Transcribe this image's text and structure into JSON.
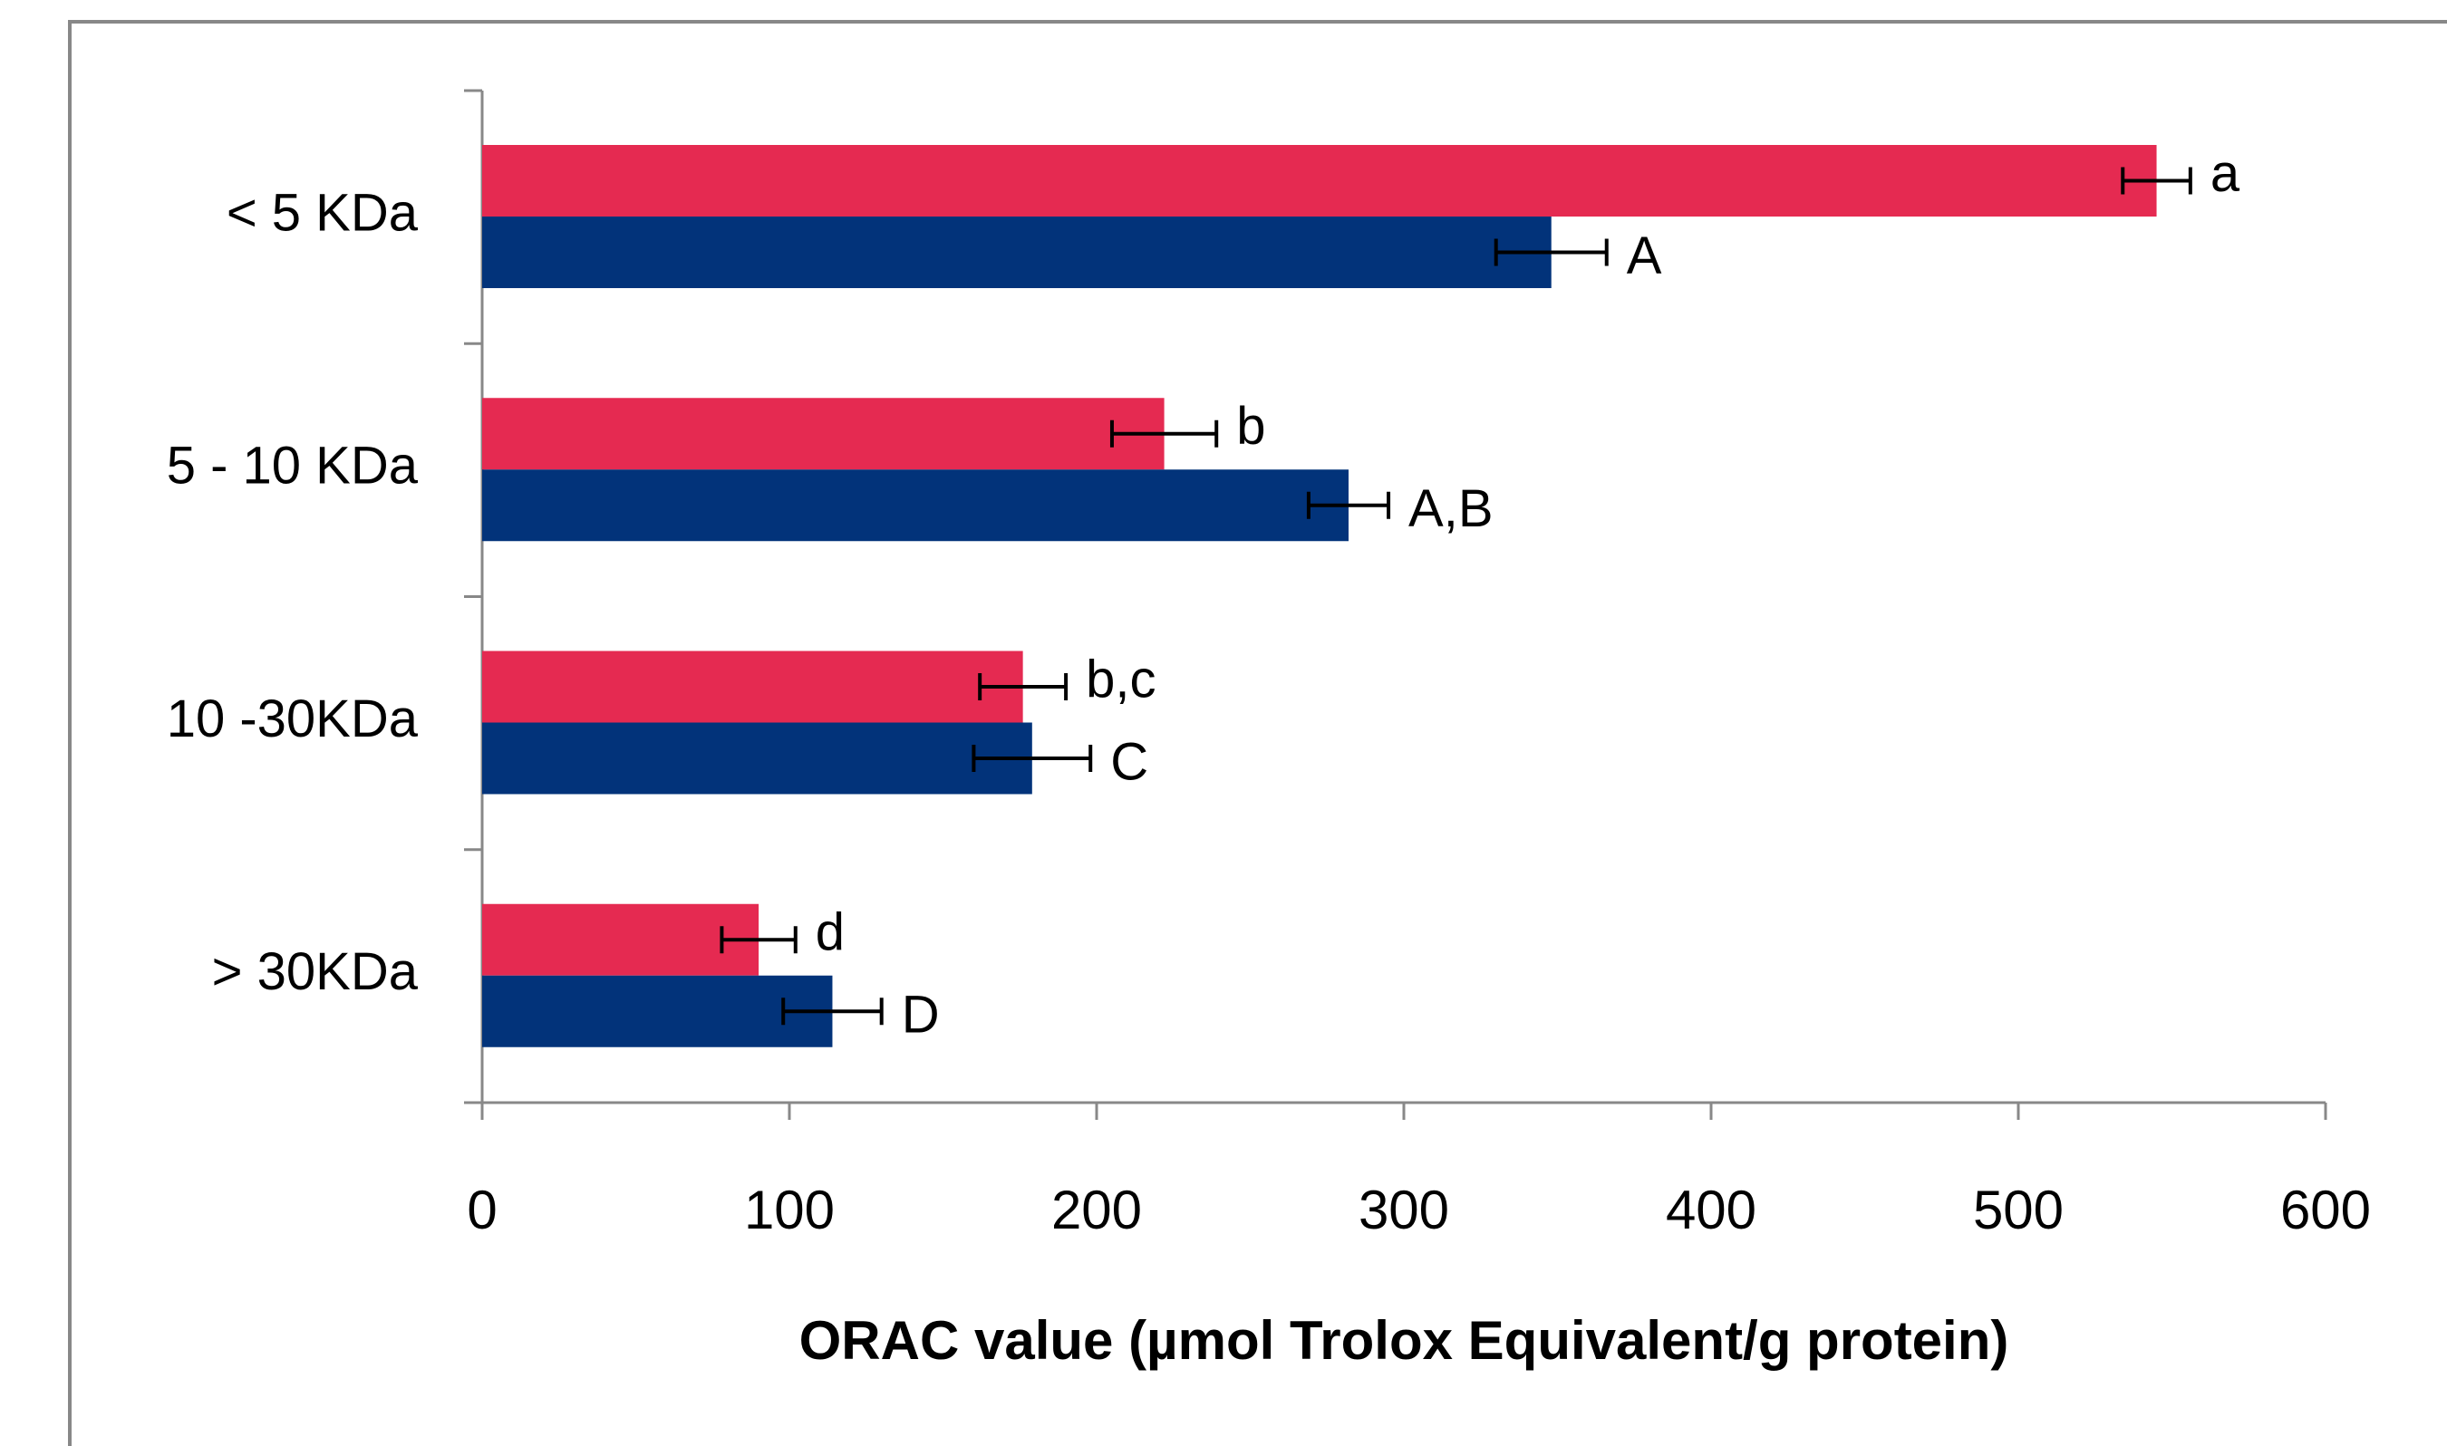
{
  "chart_data": {
    "type": "bar",
    "orientation": "horizontal",
    "categories": [
      "< 5 KDa",
      "5 - 10 KDa",
      "10 -30KDa",
      "> 30KDa"
    ],
    "series": [
      {
        "color": "#e52a51",
        "values": [
          545,
          222,
          176,
          90
        ],
        "errors": [
          11,
          17,
          14,
          12
        ],
        "labels": [
          "a",
          "b",
          "b,c",
          "d"
        ]
      },
      {
        "color": "#02337a",
        "values": [
          348,
          282,
          179,
          114
        ],
        "errors": [
          18,
          13,
          19,
          16
        ],
        "labels": [
          "A",
          "A,B",
          "C",
          "D"
        ]
      }
    ],
    "xlabel": "ORAC value (µmol Trolox Equivalent/g protein)",
    "xlim": [
      0,
      600
    ],
    "xticks": [
      0,
      100,
      200,
      300,
      400,
      500,
      600
    ],
    "grid": false
  }
}
